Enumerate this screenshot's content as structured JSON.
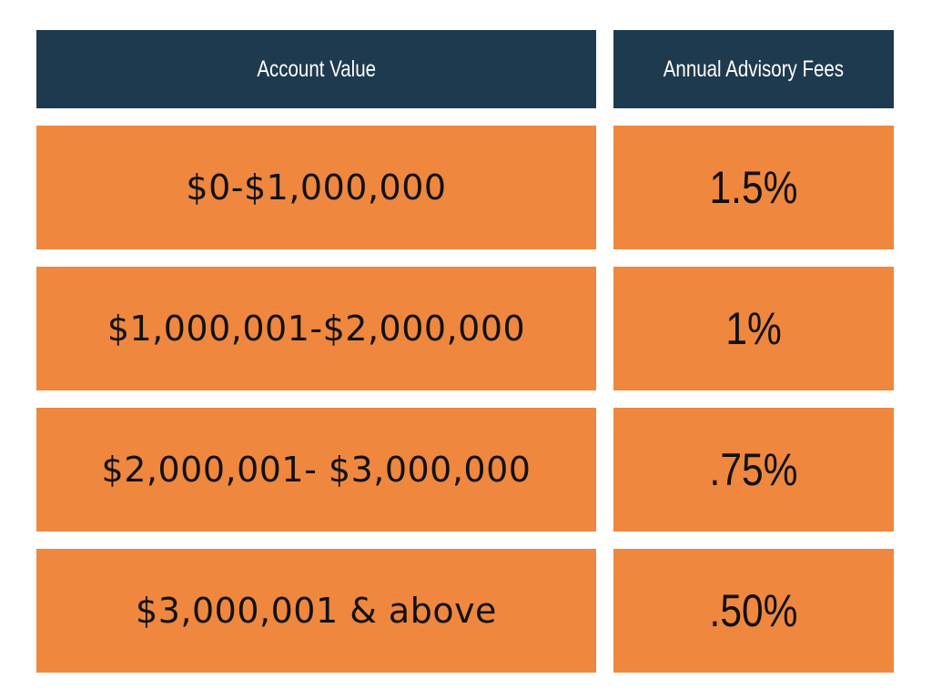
{
  "table": {
    "header": {
      "account_value": "Account Value",
      "annual_fees": "Annual Advisory Fees"
    },
    "rows": [
      {
        "account_value": "$0-$1,000,000",
        "fee": "1.5%"
      },
      {
        "account_value": "$1,000,001-$2,000,000",
        "fee": "1%"
      },
      {
        "account_value": "$2,000,001- $3,000,000",
        "fee": ".75%"
      },
      {
        "account_value": "$3,000,001 & above",
        "fee": ".50%"
      }
    ]
  },
  "colors": {
    "header_background": "#1e3a4f",
    "row_background": "#ef873e",
    "header_text": "#ffffff",
    "row_text": "#111111"
  }
}
